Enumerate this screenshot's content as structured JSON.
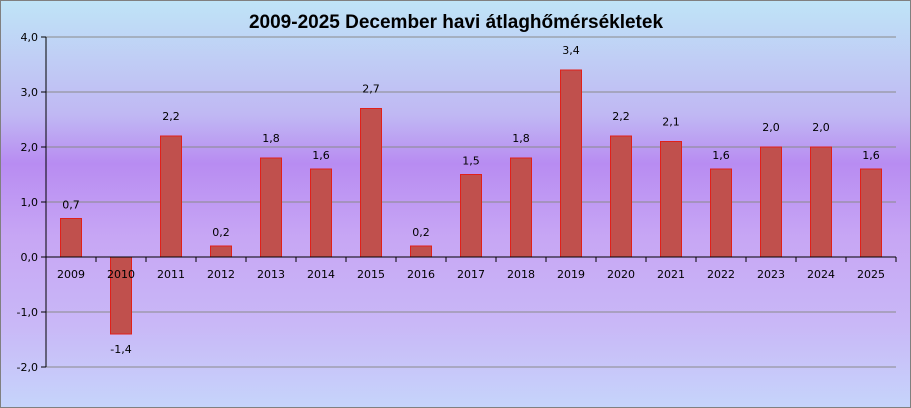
{
  "chart_data": {
    "type": "bar",
    "title": "2009-2025 December havi átlaghőmérsékletek",
    "xlabel": "",
    "ylabel": "",
    "categories": [
      "2009",
      "2010",
      "2011",
      "2012",
      "2013",
      "2014",
      "2015",
      "2016",
      "2017",
      "2018",
      "2019",
      "2020",
      "2021",
      "2022",
      "2023",
      "2024",
      "2025"
    ],
    "values": [
      0.7,
      -1.4,
      2.2,
      0.2,
      1.8,
      1.6,
      2.7,
      0.2,
      1.5,
      1.8,
      3.4,
      2.2,
      2.1,
      1.6,
      2.0,
      2.0,
      1.6
    ],
    "data_labels": [
      "0,7",
      "-1,4",
      "2,2",
      "0,2",
      "1,8",
      "1,6",
      "2,7",
      "0,2",
      "1,5",
      "1,8",
      "3,4",
      "2,2",
      "2,1",
      "1,6",
      "2,0",
      "2,0",
      "1,6"
    ],
    "ylim": [
      -2.0,
      4.0
    ],
    "yticks": [
      4.0,
      3.0,
      2.0,
      1.0,
      0.0,
      -1.0,
      -2.0
    ],
    "ytick_labels": [
      "4,0",
      "3,0",
      "2,0",
      "1,0",
      "0,0",
      "-1,0",
      "-2,0"
    ],
    "grid": true,
    "legend": "none",
    "colors": {
      "bar_fill": "#c0504d",
      "bar_stroke": "#e0201a",
      "grid": "#8a8a8a"
    }
  }
}
